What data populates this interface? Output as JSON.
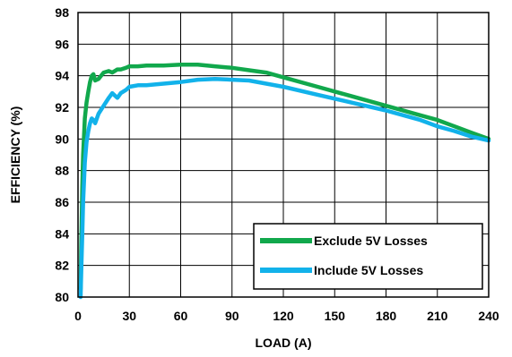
{
  "chart_data": {
    "type": "line",
    "title": "",
    "xlabel": "LOAD (A)",
    "ylabel": "EFFICIENCY (%)",
    "xlim": [
      0,
      240
    ],
    "ylim": [
      80,
      98
    ],
    "xticks": [
      0,
      30,
      60,
      90,
      120,
      150,
      180,
      210,
      240
    ],
    "yticks": [
      80,
      82,
      84,
      86,
      88,
      90,
      92,
      94,
      96,
      98
    ],
    "xtick_labels": [
      "0",
      "30",
      "60",
      "90",
      "120",
      "150",
      "180",
      "210",
      "240"
    ],
    "ytick_labels": [
      "80",
      "82",
      "84",
      "86",
      "88",
      "90",
      "92",
      "94",
      "96",
      "98"
    ],
    "grid": true,
    "legend_position": "bottom-right",
    "series": [
      {
        "name": "Exclude 5V Losses",
        "color": "#11a84c",
        "x": [
          1.5,
          2.0,
          2.5,
          3.0,
          4.0,
          5.0,
          6.0,
          7.0,
          8.0,
          9.0,
          10.0,
          12.0,
          15.0,
          18.0,
          20.0,
          23.0,
          25.0,
          28.0,
          30.0,
          35.0,
          40.0,
          50.0,
          60.0,
          70.0,
          80.0,
          90.0,
          100.0,
          110.0,
          120.0,
          140.0,
          160.0,
          180.0,
          200.0,
          210.0,
          220.0,
          230.0,
          240.0
        ],
        "y": [
          80.5,
          84.0,
          87.0,
          89.0,
          91.3,
          92.3,
          93.0,
          93.6,
          94.0,
          94.1,
          93.7,
          93.8,
          94.2,
          94.3,
          94.2,
          94.4,
          94.4,
          94.5,
          94.6,
          94.6,
          94.65,
          94.65,
          94.7,
          94.7,
          94.6,
          94.5,
          94.35,
          94.2,
          93.9,
          93.3,
          92.7,
          92.1,
          91.5,
          91.2,
          90.8,
          90.4,
          90.0
        ]
      },
      {
        "name": "Include 5V Losses",
        "color": "#12b2ea",
        "x": [
          1.5,
          2.0,
          2.5,
          3.0,
          4.0,
          5.0,
          6.0,
          7.0,
          8.0,
          9.0,
          10.0,
          12.0,
          15.0,
          18.0,
          20.0,
          23.0,
          25.0,
          28.0,
          30.0,
          35.0,
          40.0,
          50.0,
          60.0,
          70.0,
          80.0,
          90.0,
          100.0,
          110.0,
          120.0,
          140.0,
          160.0,
          180.0,
          200.0,
          210.0,
          220.0,
          230.0,
          240.0
        ],
        "y": [
          80.0,
          82.0,
          84.0,
          86.0,
          88.5,
          89.8,
          90.5,
          91.0,
          91.3,
          91.2,
          91.0,
          91.6,
          92.1,
          92.6,
          92.9,
          92.6,
          92.9,
          93.1,
          93.3,
          93.4,
          93.4,
          93.5,
          93.6,
          93.75,
          93.8,
          93.75,
          93.7,
          93.5,
          93.3,
          92.8,
          92.3,
          91.8,
          91.2,
          90.8,
          90.5,
          90.15,
          89.9
        ]
      }
    ]
  }
}
